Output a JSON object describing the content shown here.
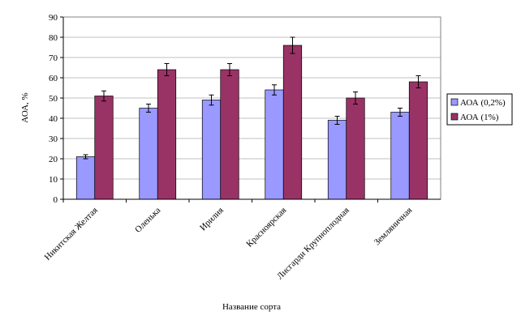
{
  "chart_data": {
    "type": "bar",
    "x_label": "Название сорта",
    "y_label": "АОА, %",
    "categories": [
      "Никитская Желтая",
      "Оленька",
      "Ирилия",
      "Красноярская",
      "Лисгарди Крупноплодная",
      "Земляничная"
    ],
    "series": [
      {
        "name": "АОА (0,2%)",
        "color": "#9999ff",
        "values": [
          21,
          45,
          49,
          54,
          39,
          43
        ],
        "errors": [
          1,
          2,
          2.5,
          2.5,
          2,
          2
        ]
      },
      {
        "name": "АОА (1%)",
        "color": "#993366",
        "values": [
          51,
          64,
          64,
          76,
          50,
          58
        ],
        "errors": [
          2.5,
          3,
          3,
          4,
          3,
          3
        ]
      }
    ],
    "ylim": [
      0,
      90
    ],
    "yticks": [
      0,
      10,
      20,
      30,
      40,
      50,
      60,
      70,
      80,
      90
    ],
    "grid": true,
    "legend": "right"
  }
}
